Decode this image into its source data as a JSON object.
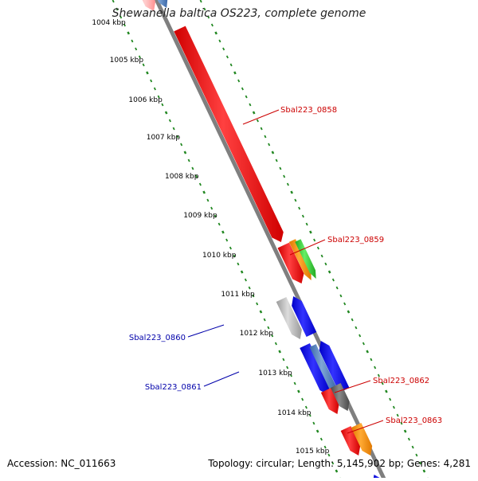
{
  "title": "Shewanella baltica OS223, complete genome",
  "footer": {
    "accession": "Accession: NC_011663",
    "summary": "Topology: circular; Length: 5,145,902 bp; Genes: 4,281"
  },
  "scale": {
    "unit_labels": [
      "1004 kbp",
      "1005 kbp",
      "1006 kbp",
      "1007 kbp",
      "1008 kbp",
      "1009 kbp",
      "1010 kbp",
      "1011 kbp",
      "1012 kbp",
      "1013 kbp",
      "1014 kbp",
      "1015 kbp"
    ]
  },
  "gene_labels": [
    {
      "id": "Sbal223_0858",
      "color": "#cc0000"
    },
    {
      "id": "Sbal223_0859",
      "color": "#cc0000"
    },
    {
      "id": "Sbal223_0860",
      "color": "#0000aa"
    },
    {
      "id": "Sbal223_0861",
      "color": "#0000aa"
    },
    {
      "id": "Sbal223_0862",
      "color": "#cc0000"
    },
    {
      "id": "Sbal223_0863",
      "color": "#cc0000"
    }
  ],
  "colors": {
    "red": "#ff0000",
    "blue": "#0000ff",
    "steelblue": "#4f7fbf",
    "gray": "#8c8c8c",
    "darkgray": "#595959",
    "orange": "#ff8c00",
    "green": "#33cc33",
    "tick": "#228822",
    "backbone": "#7f7f7f"
  }
}
